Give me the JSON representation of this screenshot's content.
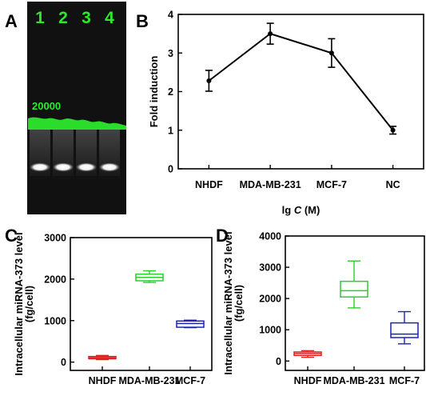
{
  "panels": {
    "a": {
      "letter": "A",
      "lanes": [
        "1",
        "2",
        "3",
        "4"
      ],
      "marker": "20000",
      "colors": {
        "background": "#111111",
        "label": "#2de82d",
        "band": "#ffffff"
      }
    },
    "b": {
      "letter": "B"
    },
    "c": {
      "letter": "C"
    },
    "d": {
      "letter": "D"
    }
  },
  "chart_data": [
    {
      "id": "b",
      "type": "line",
      "categories": [
        "NHDF",
        "MDA-MB-231",
        "MCF-7",
        "NC"
      ],
      "x_tick_positions": [
        1,
        2,
        3,
        4
      ],
      "values": [
        2.28,
        3.5,
        3.0,
        1.0
      ],
      "errors": [
        0.27,
        0.27,
        0.37,
        0.1
      ],
      "xlabel_prefix": "lg ",
      "xlabel_var": "C",
      "xlabel_suffix": " (M)",
      "ylabel": "Fold induction",
      "xlim": [
        0.5,
        4.5
      ],
      "ylim": [
        0,
        4
      ],
      "yticks": [
        0,
        1,
        2,
        3,
        4
      ],
      "grid": false,
      "color": "#000000"
    },
    {
      "id": "c",
      "type": "box",
      "categories": [
        "NHDF",
        "MDA-MB-231",
        "MCF-7"
      ],
      "ylabel_lines": [
        "Intracellular miRNA-373 level",
        "(fg/cell)"
      ],
      "ylim": [
        -200,
        3000
      ],
      "yticks": [
        0,
        1000,
        2000,
        3000
      ],
      "grid": false,
      "boxes": [
        {
          "min": 60,
          "q1": 80,
          "median": 105,
          "q3": 135,
          "max": 160,
          "color": "#e0201e"
        },
        {
          "min": 1920,
          "q1": 1960,
          "median": 2040,
          "q3": 2120,
          "max": 2200,
          "color": "#2ecc2e"
        },
        {
          "min": 830,
          "q1": 840,
          "median": 930,
          "q3": 990,
          "max": 1010,
          "color": "#1f22b8"
        }
      ]
    },
    {
      "id": "d",
      "type": "box",
      "categories": [
        "NHDF",
        "MDA-MB-231",
        "MCF-7"
      ],
      "ylabel_lines": [
        "Intracellular miRNA-373 level",
        "(fg/cell)"
      ],
      "ylim": [
        -300,
        4000
      ],
      "yticks": [
        0,
        1000,
        2000,
        3000,
        4000
      ],
      "grid": false,
      "boxes": [
        {
          "min": 120,
          "q1": 180,
          "median": 240,
          "q3": 290,
          "max": 330,
          "color": "#e0201e"
        },
        {
          "min": 1700,
          "q1": 2050,
          "median": 2250,
          "q3": 2550,
          "max": 3200,
          "color": "#2ecc2e"
        },
        {
          "min": 550,
          "q1": 750,
          "median": 860,
          "q3": 1220,
          "max": 1580,
          "color": "#1f22b8"
        }
      ]
    }
  ]
}
